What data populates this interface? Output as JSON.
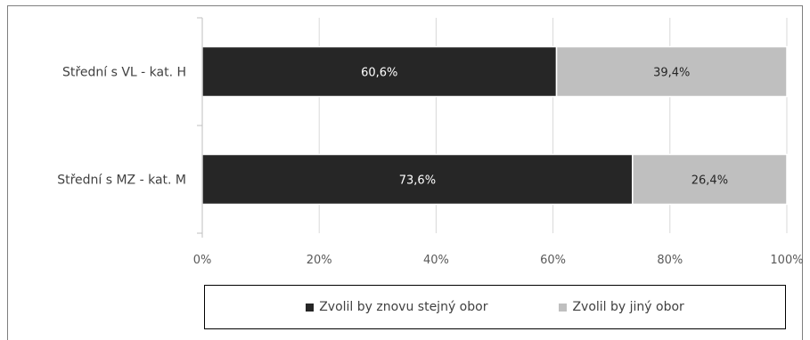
{
  "chart_data": {
    "type": "bar",
    "orientation": "horizontal",
    "stacked": true,
    "categories": [
      "Střední s VL - kat. H",
      "Střední s MZ - kat. M"
    ],
    "series": [
      {
        "name": "Zvolil by znovu stejný obor",
        "values": [
          60.6,
          73.6
        ],
        "labels": [
          "60,6%",
          "73,6%"
        ],
        "color": "#262626",
        "label_color": "#ffffff"
      },
      {
        "name": "Zvolil by jiný obor",
        "values": [
          39.4,
          26.4
        ],
        "labels": [
          "39,4%",
          "26,4%"
        ],
        "color": "#bfbfbf",
        "label_color": "#262626"
      }
    ],
    "xlim": [
      0,
      100
    ],
    "xticks": [
      0,
      20,
      40,
      60,
      80,
      100
    ],
    "xtick_labels": [
      "0%",
      "20%",
      "40%",
      "60%",
      "80%",
      "100%"
    ],
    "grid": true,
    "legend_position": "bottom"
  }
}
